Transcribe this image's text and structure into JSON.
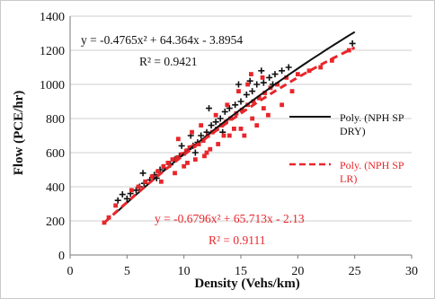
{
  "chart_data": {
    "type": "scatter",
    "title": "",
    "xlabel": "Density (Vehs/km)",
    "ylabel": "Flow (PCE/hr)",
    "xlim": [
      0,
      30
    ],
    "ylim": [
      0,
      1400
    ],
    "x_ticks": [
      "0",
      "5",
      "10",
      "15",
      "20",
      "25",
      "30"
    ],
    "y_ticks": [
      "0",
      "200",
      "400",
      "600",
      "800",
      "1000",
      "1200",
      "1400"
    ],
    "grid": "horizontal",
    "legend_position": "right",
    "colors": {
      "dry": "#111111",
      "lr": "#e8262b"
    },
    "series": [
      {
        "name": "NPH SP DRY",
        "color": "#111111",
        "marker": "plus",
        "points": [
          [
            4.2,
            320
          ],
          [
            4.6,
            355
          ],
          [
            5.0,
            330
          ],
          [
            5.3,
            360
          ],
          [
            5.8,
            380
          ],
          [
            6.1,
            400
          ],
          [
            6.5,
            420
          ],
          [
            7.0,
            440
          ],
          [
            7.4,
            470
          ],
          [
            7.9,
            500
          ],
          [
            8.3,
            510
          ],
          [
            8.8,
            530
          ],
          [
            9.2,
            560
          ],
          [
            9.6,
            580
          ],
          [
            10.1,
            600
          ],
          [
            10.4,
            620
          ],
          [
            10.8,
            640
          ],
          [
            11.2,
            660
          ],
          [
            11.5,
            700
          ],
          [
            12.0,
            720
          ],
          [
            12.4,
            760
          ],
          [
            12.8,
            780
          ],
          [
            13.2,
            800
          ],
          [
            13.6,
            840
          ],
          [
            14.0,
            860
          ],
          [
            14.5,
            880
          ],
          [
            15.0,
            900
          ],
          [
            15.5,
            940
          ],
          [
            16.0,
            960
          ],
          [
            16.4,
            1000
          ],
          [
            17.0,
            1010
          ],
          [
            17.5,
            1040
          ],
          [
            18.0,
            1060
          ],
          [
            18.6,
            1080
          ],
          [
            19.2,
            1100
          ],
          [
            14.8,
            1000
          ],
          [
            15.8,
            1020
          ],
          [
            16.8,
            1080
          ],
          [
            12.2,
            860
          ],
          [
            13.4,
            720
          ],
          [
            11.0,
            600
          ],
          [
            9.8,
            640
          ],
          [
            7.6,
            450
          ],
          [
            6.4,
            480
          ],
          [
            10.6,
            700
          ],
          [
            17.8,
            1000
          ],
          [
            24.8,
            1240
          ]
        ]
      },
      {
        "name": "NPH SP LR",
        "color": "#e8262b",
        "marker": "square",
        "points": [
          [
            3.0,
            190
          ],
          [
            3.4,
            220
          ],
          [
            4.0,
            290
          ],
          [
            5.4,
            380
          ],
          [
            6.0,
            400
          ],
          [
            6.6,
            430
          ],
          [
            7.2,
            460
          ],
          [
            7.7,
            490
          ],
          [
            8.2,
            520
          ],
          [
            8.6,
            540
          ],
          [
            9.0,
            560
          ],
          [
            9.4,
            570
          ],
          [
            9.8,
            590
          ],
          [
            10.2,
            610
          ],
          [
            10.5,
            630
          ],
          [
            10.9,
            640
          ],
          [
            11.3,
            650
          ],
          [
            11.7,
            670
          ],
          [
            12.1,
            700
          ],
          [
            12.5,
            720
          ],
          [
            12.9,
            740
          ],
          [
            13.3,
            760
          ],
          [
            13.7,
            780
          ],
          [
            14.1,
            800
          ],
          [
            14.6,
            830
          ],
          [
            15.1,
            850
          ],
          [
            15.6,
            880
          ],
          [
            16.1,
            900
          ],
          [
            16.6,
            920
          ],
          [
            17.1,
            950
          ],
          [
            17.6,
            980
          ],
          [
            18.2,
            1000
          ],
          [
            19.0,
            1040
          ],
          [
            20.0,
            1060
          ],
          [
            21.0,
            1080
          ],
          [
            22.0,
            1100
          ],
          [
            23.0,
            1140
          ],
          [
            24.5,
            1200
          ],
          [
            10.0,
            520
          ],
          [
            11.0,
            560
          ],
          [
            12.0,
            600
          ],
          [
            13.0,
            650
          ],
          [
            14.0,
            700
          ],
          [
            15.0,
            740
          ],
          [
            16.0,
            800
          ],
          [
            17.0,
            860
          ],
          [
            11.5,
            760
          ],
          [
            12.8,
            820
          ],
          [
            13.8,
            880
          ],
          [
            14.8,
            960
          ],
          [
            15.6,
            1000
          ],
          [
            9.5,
            680
          ],
          [
            10.7,
            720
          ],
          [
            8.0,
            430
          ],
          [
            9.2,
            480
          ],
          [
            12.3,
            620
          ],
          [
            13.5,
            700
          ],
          [
            15.3,
            700
          ],
          [
            16.4,
            760
          ],
          [
            17.4,
            820
          ],
          [
            14.4,
            740
          ],
          [
            11.8,
            580
          ],
          [
            10.3,
            540
          ],
          [
            18.6,
            880
          ],
          [
            19.5,
            960
          ],
          [
            16.9,
            1040
          ],
          [
            15.9,
            1060
          ]
        ]
      }
    ],
    "trendlines": [
      {
        "legend": "Poly. (NPH SP DRY)",
        "equation": "y = -0.4765x² + 64.364x - 3.8954",
        "r2": "R² = 0.9421",
        "coefficients": [
          -0.4765,
          64.364,
          -3.8954
        ],
        "x_range": [
          4,
          25
        ],
        "color": "#111111",
        "style": "solid"
      },
      {
        "legend": "Poly. (NPH SP LR)",
        "equation": "y = -0.6796x² + 65.713x - 2.13",
        "r2": "R² = 0.9111",
        "coefficients": [
          -0.6796,
          65.713,
          -2.13
        ],
        "x_range": [
          3,
          25
        ],
        "color": "#e8262b",
        "style": "dashed"
      }
    ]
  }
}
